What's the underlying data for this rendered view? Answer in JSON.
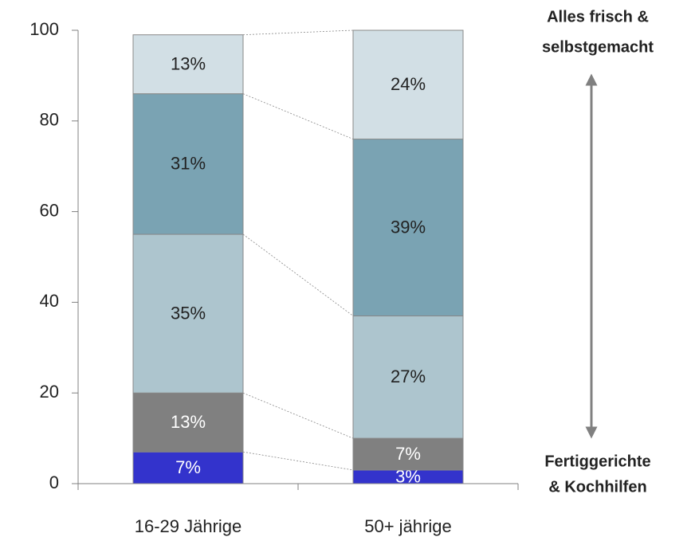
{
  "chart_data": {
    "type": "stacked_bar",
    "categories": [
      "16-29 Jährige",
      "50+ jährige"
    ],
    "series": [
      {
        "color": "#3333cc",
        "values": [
          7,
          3
        ],
        "value_labels": [
          "7%",
          "3%"
        ]
      },
      {
        "color": "#808080",
        "values": [
          13,
          7
        ],
        "value_labels": [
          "13%",
          "7%"
        ]
      },
      {
        "color": "#adc5ce",
        "values": [
          35,
          27
        ],
        "value_labels": [
          "35%",
          "27%"
        ]
      },
      {
        "color": "#7aa3b3",
        "values": [
          31,
          39
        ],
        "value_labels": [
          "31%",
          "39%"
        ]
      },
      {
        "color": "#d2dfe5",
        "values": [
          13,
          24
        ],
        "value_labels": [
          "13%",
          "24%"
        ]
      }
    ],
    "ylim": [
      0,
      100
    ],
    "yticks": [
      0,
      20,
      40,
      60,
      80,
      100
    ],
    "annotations": [
      [
        "Alles frisch &",
        "selbstgemacht"
      ],
      [
        "Fertiggerichte",
        "& Kochhilfen"
      ]
    ]
  }
}
